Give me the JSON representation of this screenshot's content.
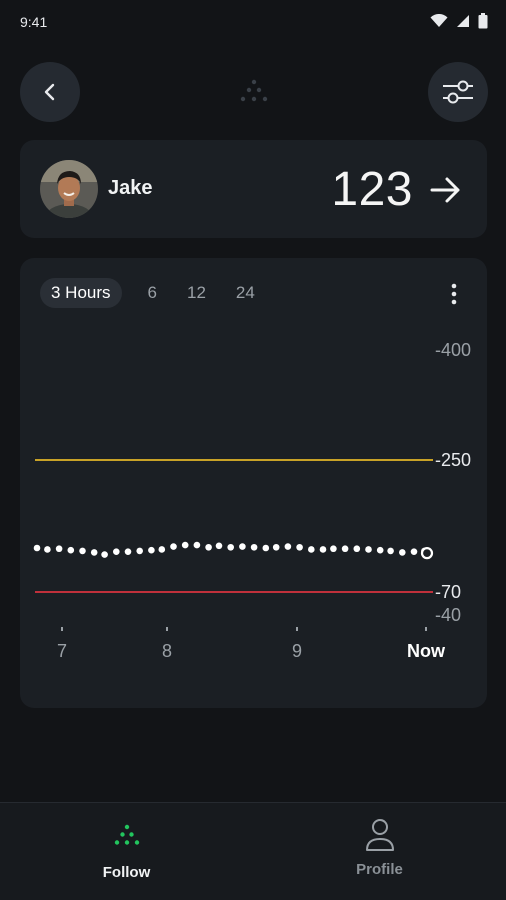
{
  "status_bar": {
    "time": "9:41",
    "icons": [
      "wifi-icon",
      "cellular-icon",
      "battery-icon"
    ]
  },
  "top_bar": {
    "back_icon": "chevron-left-icon",
    "logo_icon": "dots-triangle-logo",
    "filter_icon": "sliders-icon"
  },
  "user_card": {
    "name": "Jake",
    "glucose": "123",
    "trend_icon": "arrow-right-icon"
  },
  "range_tabs": [
    {
      "label": "3 Hours",
      "active": true
    },
    {
      "label": "6",
      "active": false
    },
    {
      "label": "12",
      "active": false
    },
    {
      "label": "24",
      "active": false
    }
  ],
  "chart_data": {
    "type": "scatter",
    "x_tick_labels": [
      "7",
      "8",
      "9",
      "Now"
    ],
    "y_tick_labels": [
      "400",
      "250",
      "70",
      "40"
    ],
    "high_threshold": 250,
    "low_threshold": 70,
    "threshold_colors": {
      "high": "#c9a227",
      "low": "#c0303b"
    },
    "ylim": [
      40,
      400
    ],
    "xlim_hours_before_now": [
      -3,
      0
    ],
    "points": [
      {
        "x": -3.0,
        "y": 130
      },
      {
        "x": -2.92,
        "y": 128
      },
      {
        "x": -2.83,
        "y": 129
      },
      {
        "x": -2.74,
        "y": 127
      },
      {
        "x": -2.65,
        "y": 126
      },
      {
        "x": -2.56,
        "y": 124
      },
      {
        "x": -2.48,
        "y": 121
      },
      {
        "x": -2.39,
        "y": 125
      },
      {
        "x": -2.3,
        "y": 125
      },
      {
        "x": -2.21,
        "y": 126
      },
      {
        "x": -2.12,
        "y": 127
      },
      {
        "x": -2.04,
        "y": 128
      },
      {
        "x": -1.95,
        "y": 132
      },
      {
        "x": -1.86,
        "y": 134
      },
      {
        "x": -1.77,
        "y": 134
      },
      {
        "x": -1.68,
        "y": 131
      },
      {
        "x": -1.6,
        "y": 133
      },
      {
        "x": -1.51,
        "y": 131
      },
      {
        "x": -1.42,
        "y": 132
      },
      {
        "x": -1.33,
        "y": 131
      },
      {
        "x": -1.24,
        "y": 130
      },
      {
        "x": -1.16,
        "y": 131
      },
      {
        "x": -1.07,
        "y": 132
      },
      {
        "x": -0.98,
        "y": 131
      },
      {
        "x": -0.89,
        "y": 128
      },
      {
        "x": -0.8,
        "y": 128
      },
      {
        "x": -0.72,
        "y": 129
      },
      {
        "x": -0.63,
        "y": 129
      },
      {
        "x": -0.54,
        "y": 129
      },
      {
        "x": -0.45,
        "y": 128
      },
      {
        "x": -0.36,
        "y": 127
      },
      {
        "x": -0.28,
        "y": 126
      },
      {
        "x": -0.19,
        "y": 124
      },
      {
        "x": -0.1,
        "y": 125
      },
      {
        "x": -0.02,
        "y": 126
      },
      {
        "x": 0.0,
        "y": 123,
        "current": true
      }
    ]
  },
  "bottom_nav": {
    "follow": {
      "label": "Follow",
      "icon": "dots-triangle-icon",
      "color": "#22c55e"
    },
    "profile": {
      "label": "Profile",
      "icon": "person-icon"
    }
  },
  "colors": {
    "background": "#121417",
    "card": "#1b1f24",
    "accent_green": "#22c55e"
  }
}
